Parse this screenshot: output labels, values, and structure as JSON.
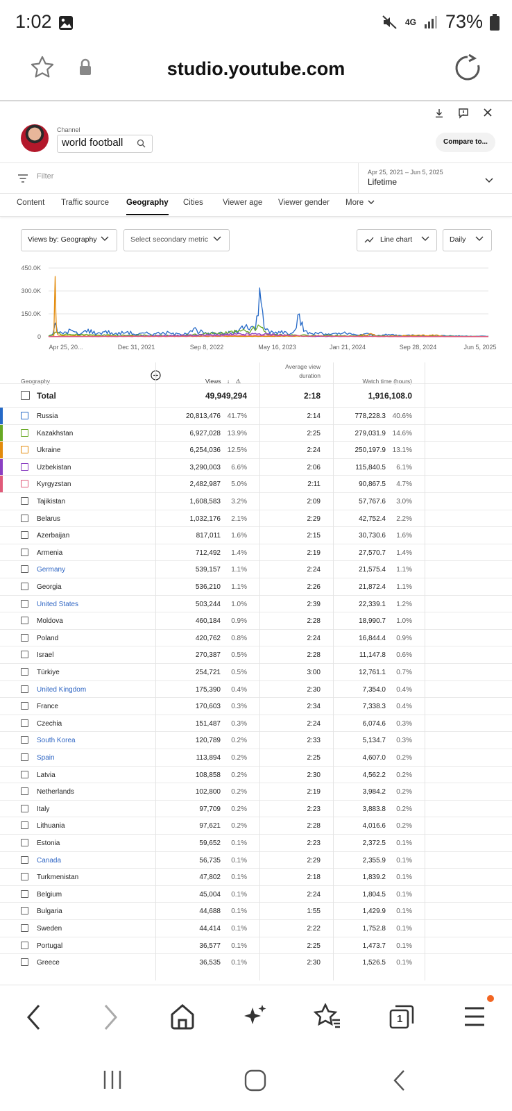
{
  "status_bar": {
    "time": "1:02",
    "network": "4G",
    "battery": "73%"
  },
  "browser": {
    "url": "studio.youtube.com"
  },
  "studio": {
    "channel_label": "Channel",
    "channel_name": "world football",
    "compare_label": "Compare to...",
    "filter_placeholder": "Filter",
    "date_range": "Apr 25, 2021 – Jun 5, 2025",
    "date_period": "Lifetime",
    "tabs": [
      "Content",
      "Traffic source",
      "Geography",
      "Cities",
      "Viewer age",
      "Viewer gender",
      "More"
    ],
    "active_tab": "Geography",
    "controls": {
      "views_by": "Views by: Geography",
      "secondary_metric": "Select secondary metric",
      "chart_type": "Line chart",
      "granularity": "Daily"
    }
  },
  "chart_data": {
    "type": "line",
    "y_ticks": [
      "450.0K",
      "300.0K",
      "150.0K",
      "0"
    ],
    "ylim": [
      0,
      450000
    ],
    "x_ticks": [
      "Apr 25, 20...",
      "Dec 31, 2021",
      "Sep 8, 2022",
      "May 16, 2023",
      "Jan 21, 2024",
      "Sep 28, 2024",
      "Jun 5, 2025"
    ],
    "series": [
      {
        "name": "Russia",
        "color": "#2569c7",
        "points": [
          [
            0,
            5
          ],
          [
            0.01,
            20
          ],
          [
            0.015,
            90
          ],
          [
            0.02,
            30
          ],
          [
            0.03,
            25
          ],
          [
            0.05,
            45
          ],
          [
            0.07,
            15
          ],
          [
            0.09,
            50
          ],
          [
            0.11,
            20
          ],
          [
            0.13,
            40
          ],
          [
            0.15,
            18
          ],
          [
            0.18,
            35
          ],
          [
            0.2,
            15
          ],
          [
            0.22,
            25
          ],
          [
            0.24,
            20
          ],
          [
            0.26,
            30
          ],
          [
            0.3,
            15
          ],
          [
            0.33,
            55
          ],
          [
            0.36,
            18
          ],
          [
            0.39,
            30
          ],
          [
            0.42,
            25
          ],
          [
            0.45,
            80
          ],
          [
            0.47,
            40
          ],
          [
            0.48,
            320
          ],
          [
            0.49,
            60
          ],
          [
            0.51,
            30
          ],
          [
            0.53,
            40
          ],
          [
            0.55,
            20
          ],
          [
            0.57,
            150
          ],
          [
            0.58,
            35
          ],
          [
            0.6,
            20
          ],
          [
            0.62,
            30
          ],
          [
            0.64,
            15
          ],
          [
            0.67,
            25
          ],
          [
            0.7,
            12
          ],
          [
            0.72,
            20
          ],
          [
            0.75,
            10
          ],
          [
            0.78,
            15
          ],
          [
            0.8,
            8
          ],
          [
            0.83,
            12
          ],
          [
            0.86,
            6
          ],
          [
            0.9,
            8
          ],
          [
            0.94,
            5
          ],
          [
            1,
            4
          ]
        ]
      },
      {
        "name": "Kazakhstan",
        "color": "#67a823",
        "points": [
          [
            0,
            2
          ],
          [
            0.015,
            30
          ],
          [
            0.05,
            15
          ],
          [
            0.1,
            12
          ],
          [
            0.2,
            10
          ],
          [
            0.3,
            8
          ],
          [
            0.46,
            40
          ],
          [
            0.48,
            70
          ],
          [
            0.5,
            15
          ],
          [
            0.6,
            10
          ],
          [
            0.7,
            6
          ],
          [
            0.8,
            4
          ],
          [
            1,
            2
          ]
        ]
      },
      {
        "name": "Ukraine",
        "color": "#e38b0c",
        "points": [
          [
            0,
            1
          ],
          [
            0.012,
            5
          ],
          [
            0.015,
            395
          ],
          [
            0.018,
            40
          ],
          [
            0.025,
            10
          ],
          [
            0.05,
            6
          ],
          [
            0.1,
            5
          ],
          [
            0.3,
            4
          ],
          [
            0.5,
            3
          ],
          [
            0.55,
            4
          ],
          [
            0.7,
            3
          ],
          [
            0.73,
            20
          ],
          [
            0.75,
            3
          ],
          [
            0.88,
            12
          ],
          [
            0.9,
            2
          ],
          [
            1,
            1
          ]
        ]
      },
      {
        "name": "Uzbekistan",
        "color": "#8a3fc2",
        "points": [
          [
            0,
            1
          ],
          [
            0.2,
            4
          ],
          [
            0.48,
            20
          ],
          [
            0.6,
            3
          ],
          [
            1,
            1
          ]
        ]
      },
      {
        "name": "Kyrgyzstan",
        "color": "#e05a79",
        "points": [
          [
            0,
            1
          ],
          [
            0.3,
            3
          ],
          [
            0.48,
            10
          ],
          [
            0.7,
            2
          ],
          [
            1,
            1
          ]
        ]
      }
    ]
  },
  "table": {
    "headers": {
      "geography": "Geography",
      "views": "Views",
      "avg_duration": "Average view duration",
      "watch_time": "Watch time (hours)"
    },
    "total": {
      "label": "Total",
      "views": "49,949,294",
      "avg": "2:18",
      "watch": "1,916,108.0"
    },
    "rows": [
      {
        "name": "Russia",
        "views": "20,813,476",
        "views_pct": "41.7%",
        "avg": "2:14",
        "watch": "778,228.3",
        "watch_pct": "40.6%",
        "color": "#2569c7",
        "link": false
      },
      {
        "name": "Kazakhstan",
        "views": "6,927,028",
        "views_pct": "13.9%",
        "avg": "2:25",
        "watch": "279,031.9",
        "watch_pct": "14.6%",
        "color": "#67a823",
        "link": false
      },
      {
        "name": "Ukraine",
        "views": "6,254,036",
        "views_pct": "12.5%",
        "avg": "2:24",
        "watch": "250,197.9",
        "watch_pct": "13.1%",
        "color": "#e38b0c",
        "link": false
      },
      {
        "name": "Uzbekistan",
        "views": "3,290,003",
        "views_pct": "6.6%",
        "avg": "2:06",
        "watch": "115,840.5",
        "watch_pct": "6.1%",
        "color": "#8a3fc2",
        "link": false
      },
      {
        "name": "Kyrgyzstan",
        "views": "2,482,987",
        "views_pct": "5.0%",
        "avg": "2:11",
        "watch": "90,867.5",
        "watch_pct": "4.7%",
        "color": "#e05a79",
        "link": false
      },
      {
        "name": "Tajikistan",
        "views": "1,608,583",
        "views_pct": "3.2%",
        "avg": "2:09",
        "watch": "57,767.6",
        "watch_pct": "3.0%",
        "color": "",
        "link": false
      },
      {
        "name": "Belarus",
        "views": "1,032,176",
        "views_pct": "2.1%",
        "avg": "2:29",
        "watch": "42,752.4",
        "watch_pct": "2.2%",
        "color": "",
        "link": false
      },
      {
        "name": "Azerbaijan",
        "views": "817,011",
        "views_pct": "1.6%",
        "avg": "2:15",
        "watch": "30,730.6",
        "watch_pct": "1.6%",
        "color": "",
        "link": false
      },
      {
        "name": "Armenia",
        "views": "712,492",
        "views_pct": "1.4%",
        "avg": "2:19",
        "watch": "27,570.7",
        "watch_pct": "1.4%",
        "color": "",
        "link": false
      },
      {
        "name": "Germany",
        "views": "539,157",
        "views_pct": "1.1%",
        "avg": "2:24",
        "watch": "21,575.4",
        "watch_pct": "1.1%",
        "color": "",
        "link": true
      },
      {
        "name": "Georgia",
        "views": "536,210",
        "views_pct": "1.1%",
        "avg": "2:26",
        "watch": "21,872.4",
        "watch_pct": "1.1%",
        "color": "",
        "link": false
      },
      {
        "name": "United States",
        "views": "503,244",
        "views_pct": "1.0%",
        "avg": "2:39",
        "watch": "22,339.1",
        "watch_pct": "1.2%",
        "color": "",
        "link": true
      },
      {
        "name": "Moldova",
        "views": "460,184",
        "views_pct": "0.9%",
        "avg": "2:28",
        "watch": "18,990.7",
        "watch_pct": "1.0%",
        "color": "",
        "link": false
      },
      {
        "name": "Poland",
        "views": "420,762",
        "views_pct": "0.8%",
        "avg": "2:24",
        "watch": "16,844.4",
        "watch_pct": "0.9%",
        "color": "",
        "link": false
      },
      {
        "name": "Israel",
        "views": "270,387",
        "views_pct": "0.5%",
        "avg": "2:28",
        "watch": "11,147.8",
        "watch_pct": "0.6%",
        "color": "",
        "link": false
      },
      {
        "name": "Türkiye",
        "views": "254,721",
        "views_pct": "0.5%",
        "avg": "3:00",
        "watch": "12,761.1",
        "watch_pct": "0.7%",
        "color": "",
        "link": false
      },
      {
        "name": "United Kingdom",
        "views": "175,390",
        "views_pct": "0.4%",
        "avg": "2:30",
        "watch": "7,354.0",
        "watch_pct": "0.4%",
        "color": "",
        "link": true
      },
      {
        "name": "France",
        "views": "170,603",
        "views_pct": "0.3%",
        "avg": "2:34",
        "watch": "7,338.3",
        "watch_pct": "0.4%",
        "color": "",
        "link": false
      },
      {
        "name": "Czechia",
        "views": "151,487",
        "views_pct": "0.3%",
        "avg": "2:24",
        "watch": "6,074.6",
        "watch_pct": "0.3%",
        "color": "",
        "link": false
      },
      {
        "name": "South Korea",
        "views": "120,789",
        "views_pct": "0.2%",
        "avg": "2:33",
        "watch": "5,134.7",
        "watch_pct": "0.3%",
        "color": "",
        "link": true
      },
      {
        "name": "Spain",
        "views": "113,894",
        "views_pct": "0.2%",
        "avg": "2:25",
        "watch": "4,607.0",
        "watch_pct": "0.2%",
        "color": "",
        "link": true
      },
      {
        "name": "Latvia",
        "views": "108,858",
        "views_pct": "0.2%",
        "avg": "2:30",
        "watch": "4,562.2",
        "watch_pct": "0.2%",
        "color": "",
        "link": false
      },
      {
        "name": "Netherlands",
        "views": "102,800",
        "views_pct": "0.2%",
        "avg": "2:19",
        "watch": "3,984.2",
        "watch_pct": "0.2%",
        "color": "",
        "link": false
      },
      {
        "name": "Italy",
        "views": "97,709",
        "views_pct": "0.2%",
        "avg": "2:23",
        "watch": "3,883.8",
        "watch_pct": "0.2%",
        "color": "",
        "link": false
      },
      {
        "name": "Lithuania",
        "views": "97,621",
        "views_pct": "0.2%",
        "avg": "2:28",
        "watch": "4,016.6",
        "watch_pct": "0.2%",
        "color": "",
        "link": false
      },
      {
        "name": "Estonia",
        "views": "59,652",
        "views_pct": "0.1%",
        "avg": "2:23",
        "watch": "2,372.5",
        "watch_pct": "0.1%",
        "color": "",
        "link": false
      },
      {
        "name": "Canada",
        "views": "56,735",
        "views_pct": "0.1%",
        "avg": "2:29",
        "watch": "2,355.9",
        "watch_pct": "0.1%",
        "color": "",
        "link": true
      },
      {
        "name": "Turkmenistan",
        "views": "47,802",
        "views_pct": "0.1%",
        "avg": "2:18",
        "watch": "1,839.2",
        "watch_pct": "0.1%",
        "color": "",
        "link": false
      },
      {
        "name": "Belgium",
        "views": "45,004",
        "views_pct": "0.1%",
        "avg": "2:24",
        "watch": "1,804.5",
        "watch_pct": "0.1%",
        "color": "",
        "link": false
      },
      {
        "name": "Bulgaria",
        "views": "44,688",
        "views_pct": "0.1%",
        "avg": "1:55",
        "watch": "1,429.9",
        "watch_pct": "0.1%",
        "color": "",
        "link": false
      },
      {
        "name": "Sweden",
        "views": "44,414",
        "views_pct": "0.1%",
        "avg": "2:22",
        "watch": "1,752.8",
        "watch_pct": "0.1%",
        "color": "",
        "link": false
      },
      {
        "name": "Portugal",
        "views": "36,577",
        "views_pct": "0.1%",
        "avg": "2:25",
        "watch": "1,473.7",
        "watch_pct": "0.1%",
        "color": "",
        "link": false
      },
      {
        "name": "Greece",
        "views": "36,535",
        "views_pct": "0.1%",
        "avg": "2:30",
        "watch": "1,526.5",
        "watch_pct": "0.1%",
        "color": "",
        "link": false
      }
    ]
  },
  "colors": {
    "link": "#2f66c4",
    "accent_dot": "#f26522"
  },
  "nav": {
    "tabs_count": "1"
  }
}
